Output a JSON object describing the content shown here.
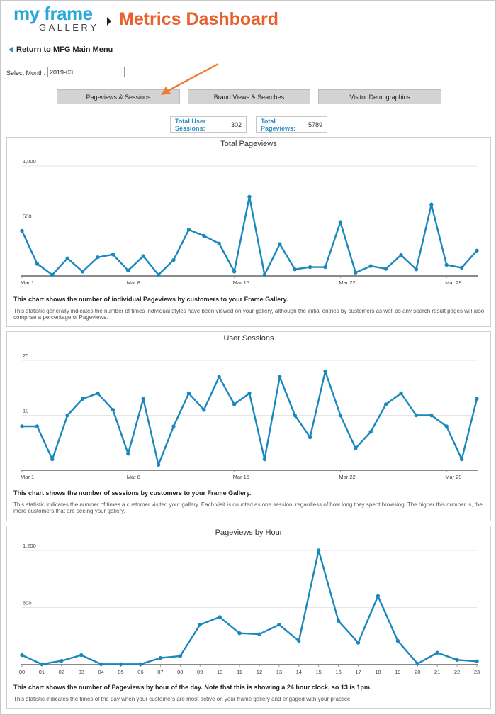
{
  "header": {
    "logo_top": "my frame",
    "logo_bottom": "GALLERY",
    "title": "Metrics Dashboard"
  },
  "nav": {
    "return_label": "Return to MFG Main Menu"
  },
  "filters": {
    "month_label": "Select Month:",
    "month_value": "2019-03"
  },
  "tabs": [
    {
      "label": "Pageviews & Sessions"
    },
    {
      "label": "Brand Views & Searches"
    },
    {
      "label": "Visitor Demographics"
    }
  ],
  "stats": [
    {
      "label": "Total User Sessions:",
      "value": "302"
    },
    {
      "label": "Total Pageviews:",
      "value": "5789"
    }
  ],
  "colors": {
    "accent": "#e8612c",
    "brand": "#2aa8d8",
    "line": "#1a87bd"
  },
  "charts": [
    {
      "bold_text": "This chart shows the number of individual Pageviews by customers to your Frame Gallery.",
      "description": "This statistic generally indicates the number of times individual styles have been viewed on your gallery, although the initial entries by customers as well as any search result pages will also comprise a percentage of Pageviews."
    },
    {
      "bold_text": "This chart shows the number of sessions by customers to your Frame Gallery.",
      "description": "This statistic indicates the number of times a customer visited your gallery. Each visit is counted as one session, regardless of how long they spent browsing. The higher this number is, the more customers that are seeing your gallery."
    },
    {
      "bold_text": "This chart shows the number of Pageviews by hour of the day. Note that this is showing a 24 hour clock, so 13 is 1pm.",
      "description": "This statistic indicates the times of the day when your customers are most active on your frame gallery and engaged with your practice."
    }
  ],
  "chart_data": [
    {
      "type": "line",
      "title": "Total Pageviews",
      "x": [
        "Mar 1",
        "Mar 2",
        "Mar 3",
        "Mar 4",
        "Mar 5",
        "Mar 6",
        "Mar 7",
        "Mar 8",
        "Mar 9",
        "Mar 10",
        "Mar 11",
        "Mar 12",
        "Mar 13",
        "Mar 14",
        "Mar 15",
        "Mar 16",
        "Mar 17",
        "Mar 18",
        "Mar 19",
        "Mar 20",
        "Mar 21",
        "Mar 22",
        "Mar 23",
        "Mar 24",
        "Mar 25",
        "Mar 26",
        "Mar 27",
        "Mar 28",
        "Mar 29",
        "Mar 30",
        "Mar 31"
      ],
      "values": [
        410,
        110,
        10,
        160,
        40,
        170,
        195,
        50,
        180,
        10,
        145,
        420,
        365,
        295,
        40,
        720,
        10,
        290,
        60,
        80,
        80,
        490,
        30,
        90,
        65,
        190,
        60,
        650,
        100,
        75,
        230
      ],
      "x_tick_labels": [
        "Mar 1",
        "Mar 8",
        "Mar 15",
        "Mar 22",
        "Mar 29"
      ],
      "y_tick_labels": [
        "1,000",
        "500"
      ],
      "y_ticks": [
        1000,
        500
      ],
      "ylim": [
        0,
        1000
      ],
      "grid": true
    },
    {
      "type": "line",
      "title": "User Sessions",
      "x": [
        "Mar 1",
        "Mar 2",
        "Mar 3",
        "Mar 4",
        "Mar 5",
        "Mar 6",
        "Mar 7",
        "Mar 8",
        "Mar 9",
        "Mar 10",
        "Mar 11",
        "Mar 12",
        "Mar 13",
        "Mar 14",
        "Mar 15",
        "Mar 16",
        "Mar 17",
        "Mar 18",
        "Mar 19",
        "Mar 20",
        "Mar 21",
        "Mar 22",
        "Mar 23",
        "Mar 24",
        "Mar 25",
        "Mar 26",
        "Mar 27",
        "Mar 28",
        "Mar 29",
        "Mar 30",
        "Mar 31"
      ],
      "values": [
        8,
        8,
        2,
        10,
        13,
        14,
        11,
        3,
        13,
        1,
        8,
        14,
        11,
        17,
        12,
        14,
        2,
        17,
        10,
        6,
        18,
        10,
        4,
        7,
        12,
        14,
        10,
        10,
        8,
        2,
        13
      ],
      "x_tick_labels": [
        "Mar 1",
        "Mar 8",
        "Mar 15",
        "Mar 22",
        "Mar 29"
      ],
      "y_tick_labels": [
        "20",
        "10"
      ],
      "y_ticks": [
        20,
        10
      ],
      "ylim": [
        0,
        20
      ],
      "grid": true
    },
    {
      "type": "line",
      "title": "Pageviews by Hour",
      "x": [
        "00",
        "01",
        "02",
        "03",
        "04",
        "05",
        "06",
        "07",
        "08",
        "09",
        "10",
        "11",
        "12",
        "13",
        "14",
        "15",
        "16",
        "17",
        "18",
        "19",
        "20",
        "21",
        "22",
        "23"
      ],
      "values": [
        100,
        5,
        40,
        100,
        5,
        5,
        5,
        70,
        90,
        420,
        500,
        330,
        320,
        420,
        250,
        1200,
        460,
        230,
        720,
        250,
        10,
        125,
        50,
        35
      ],
      "x_tick_labels": [
        "00",
        "01",
        "02",
        "03",
        "04",
        "05",
        "06",
        "07",
        "08",
        "09",
        "10",
        "11",
        "12",
        "13",
        "14",
        "15",
        "16",
        "17",
        "18",
        "19",
        "20",
        "21",
        "22",
        "23"
      ],
      "y_tick_labels": [
        "1,200",
        "600"
      ],
      "y_ticks": [
        1200,
        600
      ],
      "ylim": [
        0,
        1200
      ],
      "grid": true
    }
  ]
}
